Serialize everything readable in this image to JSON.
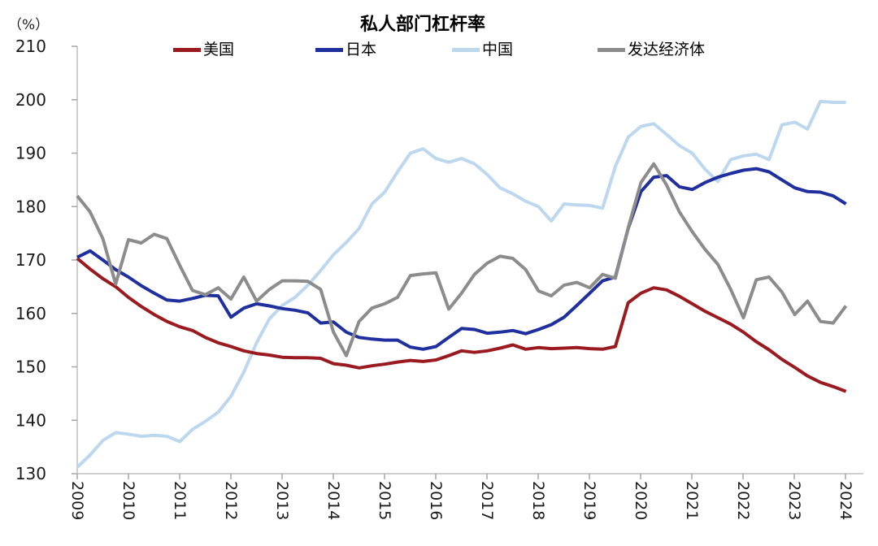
{
  "title": "私人部门杠杆率",
  "y_axis": {
    "unit_label": "（%）",
    "ticks": [
      130,
      140,
      150,
      160,
      170,
      180,
      190,
      200,
      210
    ]
  },
  "x_axis": {
    "years": [
      "2009",
      "2010",
      "2011",
      "2012",
      "2013",
      "2014",
      "2015",
      "2016",
      "2017",
      "2018",
      "2019",
      "2020",
      "2021",
      "2022",
      "2023",
      "2024"
    ]
  },
  "chart_data": {
    "type": "line",
    "title": "私人部门杠杆率",
    "ylabel": "（%）",
    "ylim": [
      130,
      210
    ],
    "grid": false,
    "legend_position": "top",
    "x_frequency": "quarterly",
    "x_labels": [
      "2009Q1",
      "2009Q2",
      "2009Q3",
      "2009Q4",
      "2010Q1",
      "2010Q2",
      "2010Q3",
      "2010Q4",
      "2011Q1",
      "2011Q2",
      "2011Q3",
      "2011Q4",
      "2012Q1",
      "2012Q2",
      "2012Q3",
      "2012Q4",
      "2013Q1",
      "2013Q2",
      "2013Q3",
      "2013Q4",
      "2014Q1",
      "2014Q2",
      "2014Q3",
      "2014Q4",
      "2015Q1",
      "2015Q2",
      "2015Q3",
      "2015Q4",
      "2016Q1",
      "2016Q2",
      "2016Q3",
      "2016Q4",
      "2017Q1",
      "2017Q2",
      "2017Q3",
      "2017Q4",
      "2018Q1",
      "2018Q2",
      "2018Q3",
      "2018Q4",
      "2019Q1",
      "2019Q2",
      "2019Q3",
      "2019Q4",
      "2020Q1",
      "2020Q2",
      "2020Q3",
      "2020Q4",
      "2021Q1",
      "2021Q2",
      "2021Q3",
      "2021Q4",
      "2022Q1",
      "2022Q2",
      "2022Q3",
      "2022Q4",
      "2023Q1",
      "2023Q2",
      "2023Q3",
      "2023Q4",
      "2024Q1"
    ],
    "series": [
      {
        "id": "china",
        "name": "中国",
        "color": "#bdd7ee",
        "values": [
          131.2,
          133.5,
          136.2,
          137.7,
          137.4,
          137.0,
          137.2,
          137.0,
          136.0,
          138.3,
          139.8,
          141.5,
          144.5,
          149.0,
          154.5,
          159.0,
          161.5,
          163.0,
          165.3,
          168.0,
          171.0,
          173.3,
          175.9,
          180.5,
          182.7,
          186.5,
          190.0,
          190.8,
          189.0,
          188.3,
          189.0,
          188.0,
          186.0,
          183.5,
          182.4,
          181.0,
          180.0,
          177.3,
          180.5,
          180.3,
          180.2,
          179.7,
          187.5,
          193.0,
          195.0,
          195.5,
          193.5,
          191.4,
          190.0,
          187.0,
          184.7,
          188.8,
          189.5,
          189.8,
          188.8,
          195.3,
          195.8,
          194.5,
          199.7,
          199.5,
          199.5
        ]
      },
      {
        "id": "us",
        "name": "美国",
        "color": "#9a1a20",
        "values": [
          170.3,
          168.3,
          166.5,
          165.0,
          163.0,
          161.3,
          159.8,
          158.5,
          157.5,
          156.8,
          155.5,
          154.5,
          153.8,
          153.0,
          152.5,
          152.2,
          151.8,
          151.7,
          151.7,
          151.6,
          150.6,
          150.3,
          149.8,
          150.2,
          150.5,
          150.9,
          151.2,
          151.0,
          151.3,
          152.1,
          153.0,
          152.7,
          153.0,
          153.5,
          154.1,
          153.3,
          153.6,
          153.4,
          153.5,
          153.6,
          153.4,
          153.3,
          153.8,
          162.0,
          163.8,
          164.8,
          164.4,
          163.2,
          161.8,
          160.4,
          159.2,
          158.0,
          156.5,
          154.7,
          153.2,
          151.4,
          149.9,
          148.3,
          147.1,
          146.3,
          145.4
        ]
      },
      {
        "id": "japan",
        "name": "日本",
        "color": "#202f9e",
        "values": [
          170.5,
          171.7,
          170.0,
          168.2,
          166.8,
          165.2,
          163.8,
          162.5,
          162.3,
          162.8,
          163.4,
          163.3,
          159.3,
          161.0,
          161.8,
          161.4,
          160.9,
          160.6,
          160.1,
          158.2,
          158.4,
          156.5,
          155.5,
          155.2,
          155.0,
          155.0,
          153.7,
          153.3,
          153.8,
          155.5,
          157.2,
          157.0,
          156.3,
          156.5,
          156.8,
          156.2,
          157.0,
          157.9,
          159.3,
          161.5,
          163.8,
          166.1,
          166.8,
          175.9,
          182.8,
          185.5,
          185.8,
          183.7,
          183.2,
          184.5,
          185.5,
          186.2,
          186.8,
          187.1,
          186.5,
          185.0,
          183.5,
          182.8,
          182.7,
          182.0,
          180.5
        ]
      },
      {
        "id": "developed",
        "name": "发达经济体",
        "color": "#8c8c8c",
        "values": [
          182.0,
          179.0,
          174.0,
          165.5,
          173.8,
          173.2,
          174.8,
          174.0,
          169.0,
          164.3,
          163.5,
          164.8,
          162.7,
          166.8,
          162.3,
          164.5,
          166.1,
          166.1,
          166.0,
          164.5,
          156.5,
          152.1,
          158.5,
          161.0,
          161.8,
          163.0,
          167.1,
          167.4,
          167.6,
          160.8,
          163.8,
          167.3,
          169.4,
          170.7,
          170.3,
          168.2,
          164.2,
          163.3,
          165.3,
          165.8,
          164.8,
          167.3,
          166.6,
          176.0,
          184.5,
          188.0,
          184.0,
          179.0,
          175.3,
          172.0,
          169.2,
          164.5,
          159.2,
          166.3,
          166.8,
          164.0,
          159.8,
          162.3,
          158.5,
          158.2,
          161.4
        ]
      }
    ],
    "legend_order": [
      "us",
      "japan",
      "china",
      "developed"
    ]
  }
}
